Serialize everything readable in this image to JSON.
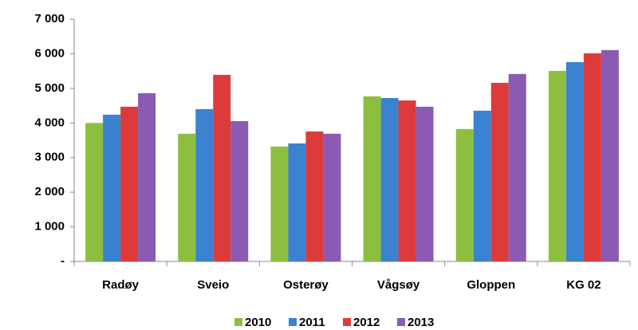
{
  "chart_data": {
    "type": "bar",
    "categories": [
      "Radøy",
      "Sveio",
      "Osterøy",
      "Vågsøy",
      "Gloppen",
      "KG 02"
    ],
    "series": [
      {
        "name": "2010",
        "color": "#8cbf3f",
        "values": [
          4000,
          3690,
          3320,
          4770,
          3825,
          5505
        ]
      },
      {
        "name": "2011",
        "color": "#3b82d0",
        "values": [
          4240,
          4400,
          3410,
          4720,
          4355,
          5760
        ]
      },
      {
        "name": "2012",
        "color": "#dd3b3b",
        "values": [
          4470,
          5390,
          3755,
          4650,
          5160,
          6014
        ]
      },
      {
        "name": "2013",
        "color": "#8b5bb4",
        "values": [
          4860,
          4055,
          3690,
          4470,
          5415,
          6106
        ]
      }
    ],
    "ylim": [
      0,
      7000
    ],
    "yticks": [
      {
        "value": 0,
        "label": "-"
      },
      {
        "value": 1000,
        "label": "1 000"
      },
      {
        "value": 2000,
        "label": "2 000"
      },
      {
        "value": 3000,
        "label": "3 000"
      },
      {
        "value": 4000,
        "label": "4 000"
      },
      {
        "value": 5000,
        "label": "5 000"
      },
      {
        "value": 6000,
        "label": "6 000"
      },
      {
        "value": 7000,
        "label": "7 000"
      }
    ],
    "grid": false,
    "legend": "bottom"
  }
}
